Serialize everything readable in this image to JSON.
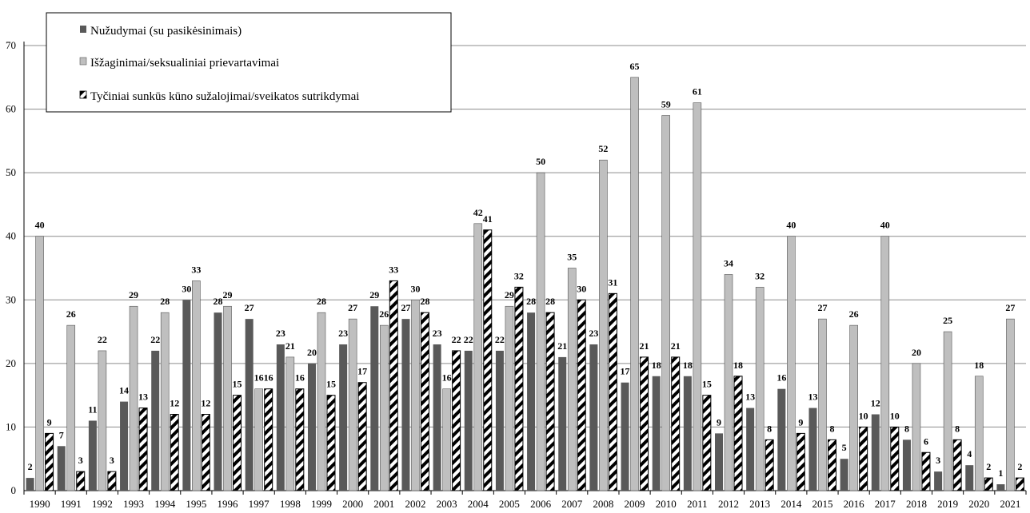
{
  "chart_data": {
    "type": "bar",
    "title": "",
    "xlabel": "",
    "ylabel": "",
    "ylim": [
      0,
      70
    ],
    "yticks": [
      0,
      10,
      20,
      30,
      40,
      50,
      60,
      70
    ],
    "grid": true,
    "legend_position": "top-left",
    "categories": [
      "1990",
      "1991",
      "1992",
      "1993",
      "1994",
      "1995",
      "1996",
      "1997",
      "1998",
      "1999",
      "2000",
      "2001",
      "2002",
      "2003",
      "2004",
      "2005",
      "2006",
      "2007",
      "2008",
      "2009",
      "2010",
      "2011",
      "2012",
      "2013",
      "2014",
      "2015",
      "2016",
      "2017",
      "2018",
      "2019",
      "2020",
      "2021"
    ],
    "series": [
      {
        "name": "Nužudymai (su pasikėsinimais)",
        "color": "#595959",
        "pattern": "solid",
        "values": [
          2,
          7,
          11,
          14,
          22,
          30,
          28,
          27,
          23,
          20,
          23,
          29,
          27,
          23,
          22,
          22,
          28,
          21,
          23,
          17,
          18,
          18,
          9,
          13,
          16,
          13,
          5,
          12,
          8,
          3,
          4,
          1
        ]
      },
      {
        "name": "Išžaginimai/seksualiniai prievartavimai",
        "color": "#bfbfbf",
        "pattern": "solid",
        "values": [
          40,
          26,
          22,
          29,
          28,
          33,
          29,
          16,
          21,
          28,
          27,
          26,
          30,
          16,
          42,
          29,
          50,
          35,
          52,
          65,
          59,
          61,
          34,
          32,
          40,
          27,
          26,
          40,
          20,
          25,
          18,
          27
        ]
      },
      {
        "name": "Tyčiniai sunkūs kūno sužalojimai/sveikatos sutrikdymai",
        "color": "#000000",
        "pattern": "diagonal-stripes",
        "values": [
          9,
          3,
          3,
          13,
          12,
          12,
          15,
          16,
          16,
          15,
          17,
          33,
          28,
          22,
          41,
          32,
          28,
          30,
          31,
          21,
          21,
          15,
          18,
          8,
          9,
          8,
          10,
          10,
          6,
          8,
          2,
          2
        ]
      }
    ]
  }
}
